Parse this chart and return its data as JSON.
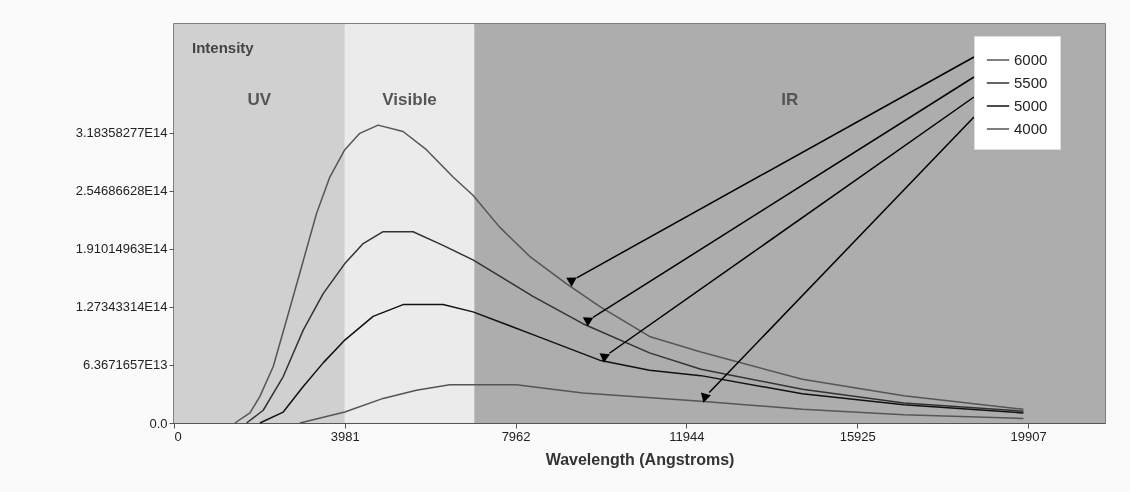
{
  "chart_data": {
    "type": "line",
    "xlabel": "Wavelength (Angstroms)",
    "ylabel": "Intensity",
    "xlim": [
      0,
      21700
    ],
    "xticks": [
      0,
      3981,
      7962,
      11944,
      15925,
      19907
    ],
    "ylim": [
      0,
      438000000000000.0
    ],
    "yticks": [
      {
        "value": 0,
        "label": "0.0"
      },
      {
        "value": 63671657000000.0,
        "label": "6.3671657E13"
      },
      {
        "value": 127343314000000.0,
        "label": "1.27343314E14"
      },
      {
        "value": 191014963000000.0,
        "label": "1.91014963E14"
      },
      {
        "value": 254686628000000.0,
        "label": "2.54686628E14"
      },
      {
        "value": 318358277000000.0,
        "label": "3.18358277E14"
      }
    ],
    "grid": false,
    "legend": "top right",
    "marker": "none",
    "line_style": "solid",
    "bands": [
      {
        "axis": "x",
        "from": 0,
        "to": 3981,
        "label": "UV",
        "color": "#d0d0d0"
      },
      {
        "axis": "x",
        "from": 3981,
        "to": 7000,
        "label": "Visible",
        "color": "#ebebeb"
      },
      {
        "axis": "x",
        "from": 7000,
        "to": 21700,
        "label": "IR",
        "color": "#adadad"
      }
    ],
    "series": [
      {
        "name": "6000",
        "color": "#555555",
        "x": [
          1420,
          1770,
          2000,
          2313,
          2623,
          2934,
          3322,
          3632,
          3981,
          4330,
          4757,
          5339,
          5883,
          6504,
          6969,
          7590,
          8289,
          9143,
          9919,
          11083,
          12282,
          14645,
          17010,
          19800
        ],
        "values": [
          0,
          11000000000000.0,
          29000000000000.0,
          62000000000000.0,
          113000000000000.0,
          165000000000000.0,
          230000000000000.0,
          270000000000000.0,
          300000000000000.0,
          318000000000000.0,
          327000000000000.0,
          320000000000000.0,
          300000000000000.0,
          270000000000000.0,
          250000000000000.0,
          215000000000000.0,
          183000000000000.0,
          153000000000000.0,
          128000000000000.0,
          95000000000000.0,
          78000000000000.0,
          48000000000000.0,
          30000000000000.0,
          15000000000000.0
        ]
      },
      {
        "name": "5500",
        "color": "#333333",
        "x": [
          1692,
          2080,
          2546,
          3012,
          3477,
          3981,
          4409,
          4874,
          5573,
          6271,
          6969,
          8366,
          9530,
          11083,
          12282,
          14645,
          17010,
          19800
        ],
        "values": [
          0,
          14000000000000.0,
          51000000000000.0,
          102000000000000.0,
          142000000000000.0,
          175000000000000.0,
          197000000000000.0,
          210000000000000.0,
          210000000000000.0,
          195000000000000.0,
          179000000000000.0,
          139000000000000.0,
          109000000000000.0,
          77000000000000.0,
          59000000000000.0,
          37000000000000.0,
          22000000000000.0,
          13000000000000.0
        ]
      },
      {
        "name": "5000",
        "color": "#111111",
        "x": [
          2002,
          2546,
          3012,
          3477,
          3981,
          4641,
          5339,
          6271,
          6969,
          8366,
          9919,
          11083,
          12282,
          14645,
          17010,
          19800
        ],
        "values": [
          0,
          12000000000000.0,
          40000000000000.0,
          66000000000000.0,
          91000000000000.0,
          117000000000000.0,
          130000000000000.0,
          130000000000000.0,
          122000000000000.0,
          97000000000000.0,
          69000000000000.0,
          58000000000000.0,
          52000000000000.0,
          32000000000000.0,
          20000000000000.0,
          11000000000000.0
        ]
      },
      {
        "name": "4000",
        "color": "#555555",
        "x": [
          2934,
          3981,
          4874,
          5650,
          6426,
          7978,
          9530,
          12282,
          14645,
          17010,
          19800
        ],
        "values": [
          0,
          12000000000000.0,
          27000000000000.0,
          36000000000000.0,
          42000000000000.0,
          42000000000000.0,
          33000000000000.0,
          24000000000000.0,
          15000000000000.0,
          9000000000000.0,
          5000000000000.0
        ]
      }
    ]
  }
}
